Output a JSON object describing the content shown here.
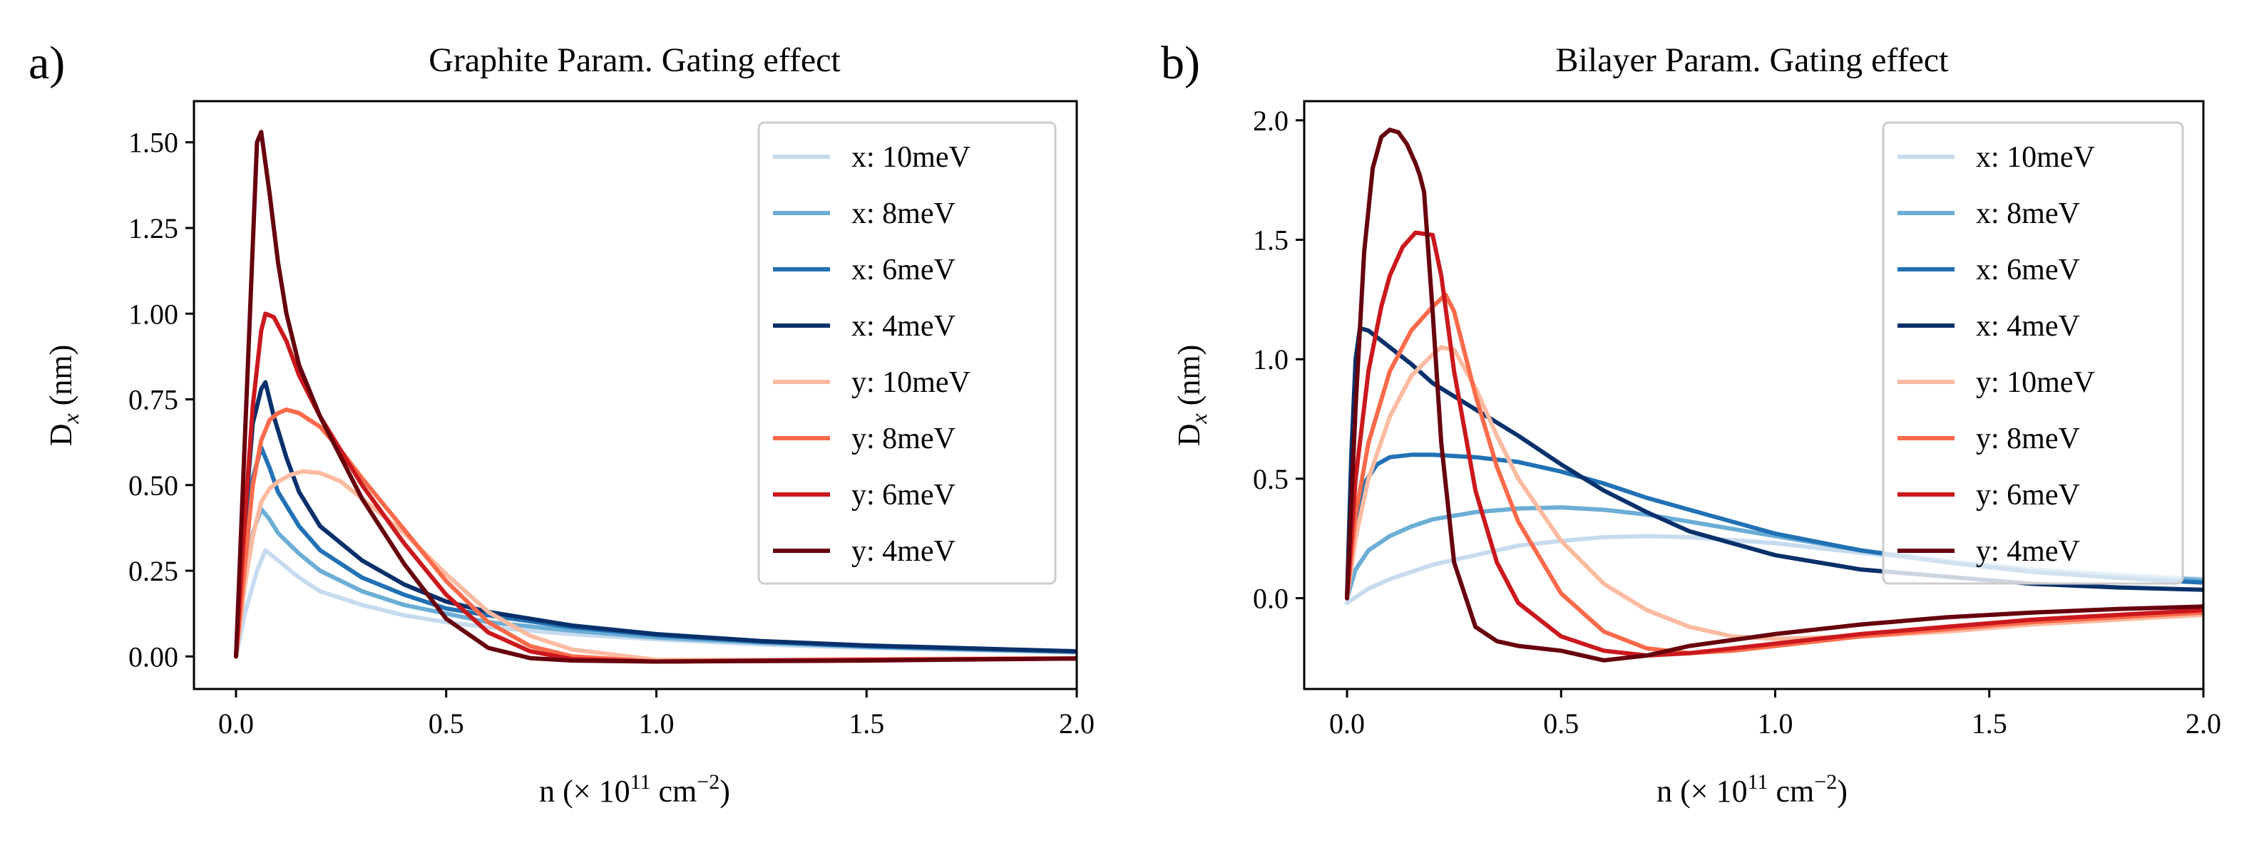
{
  "chart_data": [
    {
      "type": "line",
      "panel_label": "a)",
      "title": "Graphite Param. Gating effect",
      "xlabel_main": "n (",
      "xlabel_times": "×",
      "xlabel_ten": " 10",
      "xlabel_exp1": "11",
      "xlabel_unit": " cm",
      "xlabel_exp2": "−2",
      "xlabel_close": ")",
      "ylabel_main": "D",
      "ylabel_sub": "x",
      "ylabel_unit": " (nm)",
      "xlim": [
        -0.1,
        2.0
      ],
      "ylim": [
        -0.095,
        1.62
      ],
      "xticks": [
        0.0,
        0.5,
        1.0,
        1.5,
        2.0
      ],
      "xtick_labels": [
        "0.0",
        "0.5",
        "1.0",
        "1.5",
        "2.0"
      ],
      "yticks": [
        0.0,
        0.25,
        0.5,
        0.75,
        1.0,
        1.25,
        1.5
      ],
      "ytick_labels": [
        "0.00",
        "0.25",
        "0.50",
        "0.75",
        "1.00",
        "1.25",
        "1.50"
      ],
      "legend_position": "upper right",
      "series": [
        {
          "name": "x: 10meV",
          "color": "#c6dbef",
          "x": [
            0,
            0.02,
            0.05,
            0.07,
            0.1,
            0.15,
            0.2,
            0.3,
            0.4,
            0.5,
            0.6,
            0.8,
            1.0,
            1.25,
            1.5,
            1.75,
            2.0
          ],
          "y": [
            0,
            0.12,
            0.25,
            0.31,
            0.28,
            0.23,
            0.19,
            0.15,
            0.12,
            0.1,
            0.085,
            0.065,
            0.05,
            0.035,
            0.025,
            0.018,
            0.012
          ]
        },
        {
          "name": "x: 8meV",
          "color": "#6baed6",
          "x": [
            0,
            0.02,
            0.04,
            0.06,
            0.08,
            0.1,
            0.15,
            0.2,
            0.3,
            0.4,
            0.5,
            0.6,
            0.8,
            1.0,
            1.25,
            1.5,
            2.0
          ],
          "y": [
            0,
            0.2,
            0.36,
            0.43,
            0.4,
            0.36,
            0.3,
            0.25,
            0.19,
            0.15,
            0.125,
            0.1,
            0.075,
            0.055,
            0.04,
            0.028,
            0.012
          ]
        },
        {
          "name": "x: 6meV",
          "color": "#2171b5",
          "x": [
            0,
            0.02,
            0.04,
            0.06,
            0.08,
            0.1,
            0.15,
            0.2,
            0.3,
            0.4,
            0.5,
            0.6,
            0.8,
            1.0,
            1.25,
            1.5,
            2.0
          ],
          "y": [
            0,
            0.3,
            0.52,
            0.61,
            0.55,
            0.48,
            0.38,
            0.31,
            0.23,
            0.18,
            0.14,
            0.12,
            0.085,
            0.062,
            0.043,
            0.03,
            0.015
          ]
        },
        {
          "name": "x: 4meV",
          "color": "#08306b",
          "x": [
            0,
            0.02,
            0.04,
            0.06,
            0.07,
            0.09,
            0.12,
            0.15,
            0.2,
            0.3,
            0.4,
            0.5,
            0.6,
            0.8,
            1.0,
            1.25,
            1.5,
            2.0
          ],
          "y": [
            0,
            0.38,
            0.68,
            0.78,
            0.8,
            0.7,
            0.58,
            0.48,
            0.38,
            0.28,
            0.21,
            0.16,
            0.13,
            0.09,
            0.065,
            0.045,
            0.032,
            0.015
          ]
        },
        {
          "name": "y: 10meV",
          "color": "#fcbba1",
          "x": [
            0,
            0.02,
            0.04,
            0.06,
            0.08,
            0.1,
            0.13,
            0.16,
            0.2,
            0.25,
            0.3,
            0.4,
            0.5,
            0.6,
            0.7,
            0.8,
            1.0,
            1.25,
            1.5,
            2.0
          ],
          "y": [
            0,
            0.2,
            0.35,
            0.45,
            0.49,
            0.51,
            0.53,
            0.54,
            0.535,
            0.51,
            0.46,
            0.36,
            0.24,
            0.13,
            0.06,
            0.02,
            -0.01,
            -0.01,
            -0.008,
            -0.005
          ]
        },
        {
          "name": "y: 8meV",
          "color": "#fb6a4a",
          "x": [
            0,
            0.02,
            0.04,
            0.06,
            0.08,
            0.1,
            0.12,
            0.15,
            0.2,
            0.25,
            0.3,
            0.4,
            0.5,
            0.6,
            0.7,
            0.8,
            1.0,
            1.25,
            1.5,
            2.0
          ],
          "y": [
            0,
            0.25,
            0.5,
            0.63,
            0.69,
            0.71,
            0.72,
            0.71,
            0.67,
            0.6,
            0.52,
            0.37,
            0.22,
            0.1,
            0.03,
            0.0,
            -0.015,
            -0.012,
            -0.01,
            -0.006
          ]
        },
        {
          "name": "y: 6meV",
          "color": "#cb181d",
          "x": [
            0,
            0.02,
            0.04,
            0.06,
            0.07,
            0.09,
            0.12,
            0.15,
            0.2,
            0.25,
            0.3,
            0.4,
            0.5,
            0.6,
            0.7,
            0.8,
            1.0,
            1.25,
            1.5,
            2.0
          ],
          "y": [
            0,
            0.38,
            0.73,
            0.95,
            1.0,
            0.99,
            0.92,
            0.82,
            0.7,
            0.6,
            0.5,
            0.33,
            0.18,
            0.07,
            0.015,
            -0.008,
            -0.015,
            -0.012,
            -0.01,
            -0.006
          ]
        },
        {
          "name": "y: 4meV",
          "color": "#67000d",
          "x": [
            0,
            0.02,
            0.04,
            0.05,
            0.06,
            0.08,
            0.1,
            0.12,
            0.15,
            0.2,
            0.25,
            0.3,
            0.4,
            0.5,
            0.6,
            0.7,
            0.8,
            1.0,
            1.5,
            2.0
          ],
          "y": [
            0,
            0.6,
            1.2,
            1.5,
            1.53,
            1.35,
            1.15,
            1.0,
            0.85,
            0.7,
            0.58,
            0.46,
            0.27,
            0.11,
            0.025,
            -0.005,
            -0.012,
            -0.015,
            -0.012,
            -0.006
          ]
        }
      ]
    },
    {
      "type": "line",
      "panel_label": "b)",
      "title": "Bilayer Param. Gating effect",
      "xlabel_main": "n (",
      "xlabel_times": "×",
      "xlabel_ten": " 10",
      "xlabel_exp1": "11",
      "xlabel_unit": " cm",
      "xlabel_exp2": "−2",
      "xlabel_close": ")",
      "ylabel_main": "D",
      "ylabel_sub": "x",
      "ylabel_unit": " (nm)",
      "xlim": [
        -0.1,
        2.0
      ],
      "ylim": [
        -0.38,
        2.08
      ],
      "xticks": [
        0.0,
        0.5,
        1.0,
        1.5,
        2.0
      ],
      "xtick_labels": [
        "0.0",
        "0.5",
        "1.0",
        "1.5",
        "2.0"
      ],
      "yticks": [
        0.0,
        0.5,
        1.0,
        1.5,
        2.0
      ],
      "ytick_labels": [
        "0.0",
        "0.5",
        "1.0",
        "1.5",
        "2.0"
      ],
      "legend_position": "upper right",
      "series": [
        {
          "name": "x: 10meV",
          "color": "#c6dbef",
          "x": [
            0,
            0.05,
            0.1,
            0.2,
            0.3,
            0.4,
            0.5,
            0.6,
            0.7,
            0.8,
            1.0,
            1.2,
            1.4,
            1.6,
            1.8,
            2.0
          ],
          "y": [
            -0.02,
            0.04,
            0.08,
            0.14,
            0.18,
            0.22,
            0.24,
            0.255,
            0.26,
            0.255,
            0.23,
            0.19,
            0.15,
            0.12,
            0.1,
            0.08
          ]
        },
        {
          "name": "x: 8meV",
          "color": "#6baed6",
          "x": [
            0,
            0.02,
            0.05,
            0.1,
            0.15,
            0.2,
            0.3,
            0.4,
            0.5,
            0.6,
            0.7,
            0.8,
            1.0,
            1.2,
            1.4,
            1.6,
            1.8,
            2.0
          ],
          "y": [
            0,
            0.12,
            0.2,
            0.26,
            0.3,
            0.33,
            0.36,
            0.375,
            0.38,
            0.37,
            0.35,
            0.32,
            0.26,
            0.2,
            0.155,
            0.12,
            0.095,
            0.075
          ]
        },
        {
          "name": "x: 6meV",
          "color": "#2171b5",
          "x": [
            0,
            0.02,
            0.04,
            0.07,
            0.1,
            0.15,
            0.2,
            0.3,
            0.4,
            0.5,
            0.6,
            0.7,
            0.8,
            1.0,
            1.2,
            1.4,
            1.6,
            1.8,
            2.0
          ],
          "y": [
            0,
            0.3,
            0.48,
            0.56,
            0.59,
            0.6,
            0.6,
            0.59,
            0.57,
            0.53,
            0.48,
            0.42,
            0.37,
            0.27,
            0.2,
            0.15,
            0.11,
            0.085,
            0.065
          ]
        },
        {
          "name": "x: 4meV",
          "color": "#08306b",
          "x": [
            0,
            0.01,
            0.02,
            0.03,
            0.05,
            0.1,
            0.15,
            0.2,
            0.3,
            0.4,
            0.5,
            0.6,
            0.7,
            0.8,
            1.0,
            1.2,
            1.4,
            1.6,
            1.8,
            2.0
          ],
          "y": [
            0,
            0.6,
            1.0,
            1.13,
            1.12,
            1.05,
            0.98,
            0.9,
            0.79,
            0.68,
            0.56,
            0.45,
            0.36,
            0.28,
            0.18,
            0.12,
            0.09,
            0.06,
            0.045,
            0.035
          ]
        },
        {
          "name": "y: 10meV",
          "color": "#fcbba1",
          "x": [
            0,
            0.02,
            0.05,
            0.1,
            0.15,
            0.2,
            0.22,
            0.25,
            0.3,
            0.35,
            0.4,
            0.5,
            0.6,
            0.7,
            0.8,
            0.9,
            1.0,
            1.2,
            1.4,
            1.6,
            1.8,
            2.0
          ],
          "y": [
            0,
            0.25,
            0.5,
            0.76,
            0.93,
            1.02,
            1.05,
            1.04,
            0.88,
            0.68,
            0.5,
            0.24,
            0.06,
            -0.05,
            -0.12,
            -0.16,
            -0.17,
            -0.16,
            -0.14,
            -0.11,
            -0.09,
            -0.07
          ]
        },
        {
          "name": "y: 8meV",
          "color": "#fb6a4a",
          "x": [
            0,
            0.02,
            0.05,
            0.1,
            0.15,
            0.2,
            0.23,
            0.25,
            0.3,
            0.35,
            0.4,
            0.5,
            0.6,
            0.7,
            0.8,
            0.9,
            1.0,
            1.2,
            1.4,
            1.6,
            1.8,
            2.0
          ],
          "y": [
            0,
            0.35,
            0.65,
            0.95,
            1.12,
            1.22,
            1.27,
            1.2,
            0.85,
            0.55,
            0.32,
            0.02,
            -0.14,
            -0.21,
            -0.23,
            -0.22,
            -0.2,
            -0.16,
            -0.13,
            -0.1,
            -0.08,
            -0.06
          ]
        },
        {
          "name": "y: 6meV",
          "color": "#cb181d",
          "x": [
            0,
            0.02,
            0.05,
            0.08,
            0.1,
            0.13,
            0.16,
            0.2,
            0.22,
            0.25,
            0.3,
            0.35,
            0.4,
            0.5,
            0.6,
            0.7,
            0.8,
            1.0,
            1.2,
            1.4,
            1.6,
            1.8,
            2.0
          ],
          "y": [
            0,
            0.5,
            0.95,
            1.22,
            1.35,
            1.47,
            1.53,
            1.52,
            1.35,
            0.95,
            0.45,
            0.15,
            -0.02,
            -0.16,
            -0.22,
            -0.24,
            -0.23,
            -0.19,
            -0.15,
            -0.12,
            -0.09,
            -0.07,
            -0.05
          ]
        },
        {
          "name": "y: 4meV",
          "color": "#67000d",
          "x": [
            0,
            0.02,
            0.04,
            0.06,
            0.08,
            0.1,
            0.12,
            0.14,
            0.16,
            0.17,
            0.18,
            0.2,
            0.22,
            0.25,
            0.3,
            0.35,
            0.4,
            0.5,
            0.6,
            0.7,
            0.8,
            1.0,
            1.2,
            1.4,
            1.6,
            1.8,
            2.0
          ],
          "y": [
            0,
            0.8,
            1.45,
            1.8,
            1.93,
            1.96,
            1.95,
            1.9,
            1.82,
            1.77,
            1.7,
            1.2,
            0.65,
            0.15,
            -0.12,
            -0.18,
            -0.2,
            -0.22,
            -0.26,
            -0.24,
            -0.2,
            -0.15,
            -0.11,
            -0.08,
            -0.06,
            -0.045,
            -0.035
          ]
        }
      ]
    }
  ]
}
